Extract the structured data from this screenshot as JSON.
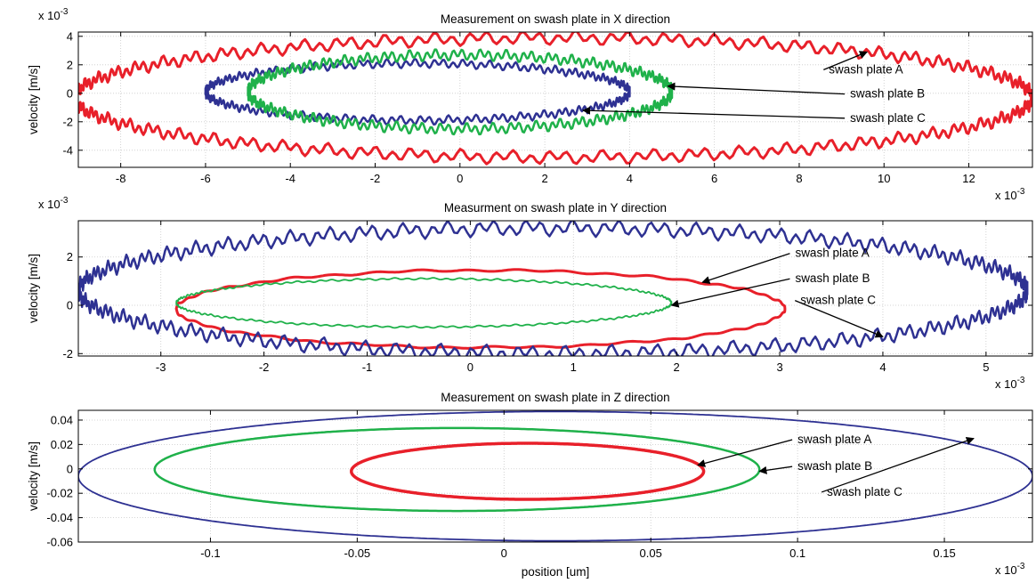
{
  "chart_data": [
    {
      "type": "line",
      "title": "Measurement on swash plate in X direction",
      "xlabel": "",
      "ylabel": "velocity [m/s]",
      "x_exponent_label": "x 10",
      "x_exponent_power": "-3",
      "y_exponent_label": "x 10",
      "y_exponent_power": "-3",
      "xlim": [
        -9,
        13.5
      ],
      "ylim": [
        -5.2,
        4.3
      ],
      "xticks": [
        -8,
        -6,
        -4,
        -2,
        0,
        2,
        4,
        6,
        8,
        10,
        12
      ],
      "xtick_labels": [
        "-8",
        "-6",
        "-4",
        "-2",
        "0",
        "2",
        "4",
        "6",
        "8",
        "10",
        "12"
      ],
      "yticks": [
        -4,
        -2,
        0,
        2,
        4
      ],
      "ytick_labels": [
        "-4",
        "-2",
        "0",
        "2",
        "4"
      ],
      "grid": true,
      "series": [
        {
          "name": "swash plate A",
          "color": "#e8202a",
          "stroke": 3,
          "loop": {
            "cx": 2.2,
            "cy": -0.3,
            "rx": 11.3,
            "ry": 4.2,
            "noise": 0.22,
            "freq": 170
          },
          "x": [
            -9.0,
            -6.0,
            -3.0,
            0.0,
            3.0,
            6.0,
            9.0,
            12.0,
            13.5,
            12.0,
            9.0,
            6.0,
            4.0,
            3.0,
            0.0,
            -3.0,
            -6.0,
            -9.0
          ],
          "y": [
            0.9,
            2.2,
            3.3,
            3.9,
            4.0,
            4.1,
            4.1,
            3.6,
            1.2,
            -1.8,
            -3.4,
            -4.1,
            -4.3,
            -4.1,
            -4.0,
            -3.8,
            -3.2,
            -0.8
          ]
        },
        {
          "name": "swash plate B",
          "color": "#2e3192",
          "stroke": 2.5,
          "loop": {
            "cx": -1.0,
            "cy": 0.1,
            "rx": 5.0,
            "ry": 2.0,
            "noise": 0.3,
            "freq": 140
          },
          "x": [
            -6.0,
            -4.0,
            -2.0,
            0.0,
            2.0,
            4.0,
            4.5,
            4.0,
            2.0,
            0.0,
            -2.0,
            -4.0,
            -6.0
          ],
          "y": [
            0.6,
            1.4,
            1.8,
            1.9,
            1.6,
            0.8,
            0.0,
            -0.8,
            -1.6,
            -2.0,
            -1.4,
            -1.3,
            -0.5
          ]
        },
        {
          "name": "swash plate C",
          "color": "#1fb14a",
          "stroke": 2.5,
          "loop": {
            "cx": 0.0,
            "cy": 0.1,
            "rx": 5.0,
            "ry": 2.6,
            "noise": 0.3,
            "freq": 150
          },
          "x": [
            -5.0,
            -3.0,
            -1.0,
            1.0,
            3.0,
            5.0,
            3.0,
            1.0,
            -1.0,
            -3.0,
            -5.0
          ],
          "y": [
            0.5,
            1.4,
            2.2,
            2.8,
            1.8,
            0.3,
            -1.0,
            -1.8,
            -1.8,
            -1.0,
            -0.3
          ]
        }
      ],
      "annotations": [
        {
          "text": "swash plate A",
          "target_x": 9.6,
          "target_y": 2.9,
          "text_x": 8.7,
          "text_y": 1.4
        },
        {
          "text": "swash plate B",
          "target_x": 4.9,
          "target_y": 0.5,
          "text_x": 9.2,
          "text_y": -0.3
        },
        {
          "text": "swash plate C",
          "target_x": 2.9,
          "target_y": -1.2,
          "text_x": 9.2,
          "text_y": -2.0
        }
      ]
    },
    {
      "type": "line",
      "title": "Measurment on swash plate in Y direction",
      "xlabel": "",
      "ylabel": "velocity [m/s]",
      "x_exponent_label": "x 10",
      "x_exponent_power": "-3",
      "y_exponent_label": "x 10",
      "y_exponent_power": "-3",
      "xlim": [
        -3.8,
        5.45
      ],
      "ylim": [
        -2.1,
        3.5
      ],
      "xticks": [
        -3,
        -2,
        -1,
        0,
        1,
        2,
        3,
        4,
        5
      ],
      "xtick_labels": [
        "-3",
        "-2",
        "-1",
        "0",
        "1",
        "2",
        "3",
        "4",
        "5"
      ],
      "yticks": [
        -2,
        0,
        2
      ],
      "ytick_labels": [
        "-2",
        "0",
        "2"
      ],
      "grid": true,
      "series": [
        {
          "name": "swash plate A",
          "color": "#e8202a",
          "stroke": 3,
          "loop": {
            "cx": 0.1,
            "cy": -0.15,
            "rx": 2.95,
            "ry": 1.6,
            "noise": 0.06,
            "freq": 40
          },
          "x": [
            -2.8,
            -2.0,
            -1.0,
            0.0,
            1.0,
            2.0,
            3.0,
            3.05,
            2.0,
            1.0,
            0.0,
            -1.0,
            -2.0,
            -2.8
          ],
          "y": [
            0.1,
            0.6,
            0.9,
            1.4,
            1.4,
            1.2,
            0.6,
            -0.3,
            -1.1,
            -1.6,
            -1.8,
            -1.3,
            -0.7,
            0.0
          ]
        },
        {
          "name": "swash plate B",
          "color": "#2e3192",
          "stroke": 2.5,
          "loop": {
            "cx": 0.8,
            "cy": 0.6,
            "rx": 4.6,
            "ry": 2.6,
            "noise": 0.25,
            "freq": 190
          },
          "x": [
            -3.8,
            -2.0,
            0.0,
            2.0,
            4.0,
            5.45,
            4.0,
            2.0,
            0.0,
            -2.0,
            -3.8
          ],
          "y": [
            1.2,
            2.6,
            2.8,
            2.9,
            3.0,
            0.0,
            -1.7,
            -1.0,
            -0.3,
            -1.9,
            -0.9
          ]
        },
        {
          "name": "swash plate C",
          "color": "#1fb14a",
          "stroke": 1.8,
          "loop": {
            "cx": -0.45,
            "cy": 0.1,
            "rx": 2.4,
            "ry": 1.0,
            "noise": 0.08,
            "freq": 120
          },
          "x": [
            -3.0,
            -2.0,
            -1.0,
            0.0,
            1.0,
            1.9,
            1.0,
            0.0,
            -1.0,
            -2.0,
            -3.0
          ],
          "y": [
            0.7,
            1.0,
            1.1,
            1.1,
            1.2,
            0.0,
            -0.6,
            -0.6,
            -0.9,
            -0.8,
            -0.3
          ]
        }
      ],
      "annotations": [
        {
          "text": "swash plate A",
          "target_x": 2.25,
          "target_y": 0.95,
          "text_x": 3.15,
          "text_y": 2.0
        },
        {
          "text": "swash plate B",
          "target_x": 1.95,
          "target_y": 0.0,
          "text_x": 3.15,
          "text_y": 0.95
        },
        {
          "text": "swash plate C",
          "target_x": 4.0,
          "target_y": -1.3,
          "text_x": 3.2,
          "text_y": 0.05
        }
      ]
    },
    {
      "type": "line",
      "title": "Measurement on swash plate in Z direction",
      "xlabel": "position [um]",
      "ylabel": "velocity [m/s]",
      "x_exponent_label": "x 10",
      "x_exponent_power": "-3",
      "xlim": [
        -0.145,
        0.18
      ],
      "ylim": [
        -0.06,
        0.048
      ],
      "xticks": [
        -0.1,
        -0.05,
        0,
        0.05,
        0.1,
        0.15
      ],
      "xtick_labels": [
        "-0.1",
        "-0.05",
        "0",
        "0.05",
        "0.1",
        "0.15"
      ],
      "yticks": [
        -0.06,
        -0.04,
        -0.02,
        0,
        0.02,
        0.04
      ],
      "ytick_labels": [
        "-0.06",
        "-0.04",
        "-0.02",
        "0",
        "0.02",
        "0.04"
      ],
      "grid": true,
      "series": [
        {
          "name": "swash plate A",
          "color": "#e8202a",
          "stroke": 3.5,
          "loop": {
            "cx": 0.008,
            "cy": -0.002,
            "rx": 0.06,
            "ry": 0.023,
            "noise": 0,
            "freq": 0
          },
          "x": [
            -0.052,
            -0.03,
            -0.012,
            0.0,
            0.03,
            0.06,
            0.068,
            0.06,
            0.03,
            0.0,
            -0.03,
            -0.052
          ],
          "y": [
            0.004,
            0.01,
            0.002,
            0.016,
            0.022,
            0.018,
            0.002,
            -0.012,
            -0.02,
            -0.025,
            -0.015,
            -0.004
          ]
        },
        {
          "name": "swash plate B",
          "color": "#1fb14a",
          "stroke": 2.5,
          "loop": {
            "cx": -0.016,
            "cy": -0.0005,
            "rx": 0.103,
            "ry": 0.034,
            "noise": 0,
            "freq": 0
          },
          "x": [
            -0.12,
            -0.08,
            -0.04,
            0.0,
            0.04,
            0.08,
            0.087,
            0.08,
            0.04,
            0.0,
            -0.04,
            -0.08,
            -0.12
          ],
          "y": [
            0.008,
            0.028,
            0.035,
            0.036,
            0.032,
            0.015,
            0.0,
            -0.012,
            -0.028,
            -0.034,
            -0.033,
            -0.028,
            -0.01
          ]
        },
        {
          "name": "swash plate C",
          "color": "#2e3192",
          "stroke": 1.8,
          "loop": {
            "cx": 0.0175,
            "cy": -0.006,
            "rx": 0.1625,
            "ry": 0.053,
            "noise": 0,
            "freq": 0
          },
          "x": [
            -0.145,
            -0.12,
            -0.06,
            0.0,
            0.06,
            0.12,
            0.18,
            0.12,
            0.06,
            0.0,
            -0.06,
            -0.12,
            -0.145
          ],
          "y": [
            0.0,
            0.016,
            0.03,
            0.041,
            0.047,
            0.043,
            0.0,
            -0.048,
            -0.058,
            -0.06,
            -0.054,
            -0.038,
            -0.01
          ]
        }
      ],
      "annotations": [
        {
          "text": "swash plate A",
          "target_x": 0.066,
          "target_y": 0.003,
          "text_x": 0.1,
          "text_y": 0.021
        },
        {
          "text": "swash plate B",
          "target_x": 0.087,
          "target_y": -0.002,
          "text_x": 0.1,
          "text_y": -0.001
        },
        {
          "text": "swash plate C",
          "target_x": 0.16,
          "target_y": 0.025,
          "text_x": 0.11,
          "text_y": -0.022
        }
      ]
    }
  ]
}
